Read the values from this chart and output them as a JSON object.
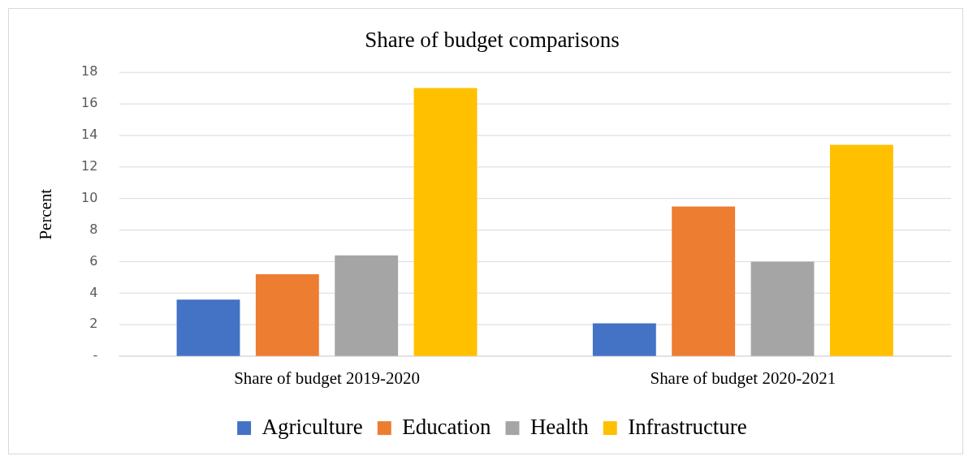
{
  "chart_data": {
    "type": "bar",
    "title": "Share of budget comparisons",
    "ylabel": "Percent",
    "categories": [
      "Share of budget 2019-2020",
      "Share of budget 2020-2021"
    ],
    "series": [
      {
        "name": "Agriculture",
        "color": "#4472c4",
        "values": [
          3.6,
          2.1
        ]
      },
      {
        "name": "Education",
        "color": "#ed7d31",
        "values": [
          5.2,
          9.5
        ]
      },
      {
        "name": "Health",
        "color": "#a5a5a5",
        "values": [
          6.4,
          6.0
        ]
      },
      {
        "name": "Infrastructure",
        "color": "#ffc000",
        "values": [
          17.0,
          13.4
        ]
      }
    ],
    "ylim": [
      0,
      18
    ],
    "yticks": [
      {
        "value": 0,
        "label": "-"
      },
      2,
      4,
      6,
      8,
      10,
      12,
      14,
      16,
      18
    ],
    "grid": "y",
    "legend": "bottom"
  }
}
